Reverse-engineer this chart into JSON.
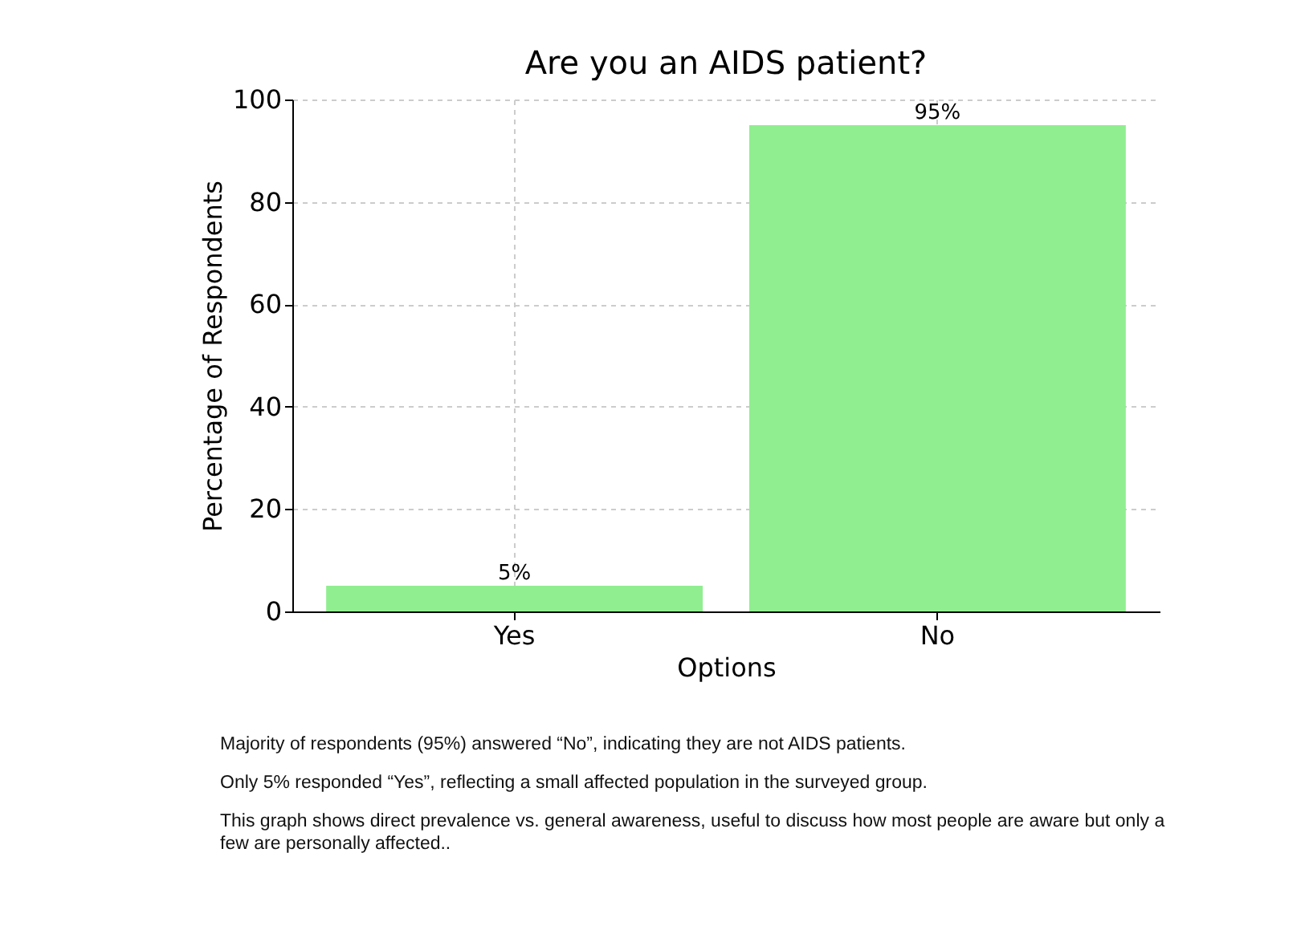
{
  "chart_data": {
    "type": "bar",
    "title": "Are you an AIDS patient?",
    "xlabel": "Options",
    "ylabel": "Percentage of Respondents",
    "categories": [
      "Yes",
      "No"
    ],
    "values": [
      5,
      95
    ],
    "color": "#90ee90",
    "value_labels": [
      "5%",
      "95%"
    ],
    "ylim": [
      0,
      100
    ],
    "yticks": [
      0,
      20,
      40,
      60,
      80,
      100
    ],
    "grid": true,
    "annotations": [
      "Majority of respondents (95%) answered “No”, indicating they are not AIDS patients.",
      "Only 5% responded “Yes”, reflecting a small affected population in the surveyed group.",
      "This graph shows direct prevalence vs. general awareness, useful to discuss how most people are aware but only a few are personally affected.."
    ]
  }
}
